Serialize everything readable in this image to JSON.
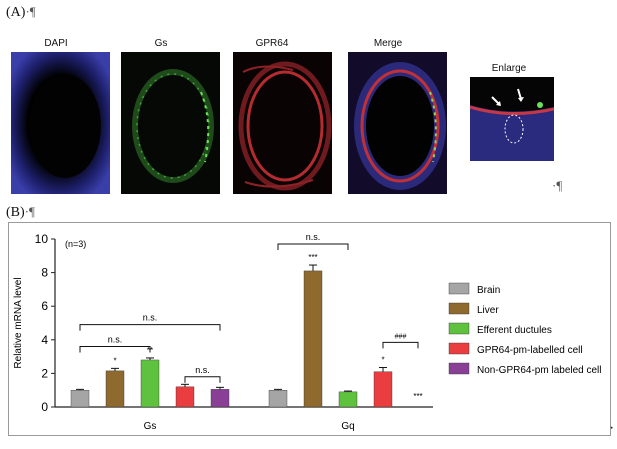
{
  "panel_a": {
    "tag": "(A)",
    "para_mark": "·¶",
    "images": [
      {
        "label": "DAPI"
      },
      {
        "label": "Gs"
      },
      {
        "label": "GPR64"
      },
      {
        "label": "Merge"
      },
      {
        "label": "Enlarge"
      }
    ],
    "trailing_mark": "·¶"
  },
  "panel_b": {
    "tag": "(B)",
    "para_mark": "·¶"
  },
  "colors": {
    "Brain": "#a6a5a6",
    "Liver": "#8e6a2e",
    "Efferent ductules": "#5fc23e",
    "GPR64-pm-labelled cell": "#ea3d3f",
    "Non-GPR64-pm labeled cell": "#8a3f97"
  },
  "chart_data": {
    "type": "bar",
    "ylabel": "Relative mRNA level",
    "ylim": [
      0,
      10
    ],
    "yticks": [
      0,
      2,
      4,
      6,
      8,
      10
    ],
    "annotation_n": "(n=3)",
    "categories": [
      "Gs",
      "Gq"
    ],
    "series": [
      {
        "name": "Brain",
        "values": [
          1.0,
          1.0
        ],
        "errors": [
          0.05,
          0.05
        ],
        "stars": [
          "",
          ""
        ]
      },
      {
        "name": "Liver",
        "values": [
          2.15,
          8.1
        ],
        "errors": [
          0.15,
          0.35
        ],
        "stars": [
          "*",
          "***"
        ]
      },
      {
        "name": "Efferent ductules",
        "values": [
          2.8,
          0.9
        ],
        "errors": [
          0.12,
          0.05
        ],
        "stars": [
          "**",
          ""
        ]
      },
      {
        "name": "GPR64-pm-labelled cell",
        "values": [
          1.2,
          2.1
        ],
        "errors": [
          0.15,
          0.25
        ],
        "stars": [
          "",
          "*"
        ]
      },
      {
        "name": "Non-GPR64-pm labeled cell",
        "values": [
          1.05,
          0.0
        ],
        "errors": [
          0.12,
          0.0
        ],
        "stars": [
          "",
          "***"
        ]
      }
    ],
    "comparisons": [
      {
        "label": "n.s.",
        "group": 0,
        "from": 0,
        "to": 4,
        "y": 4.9
      },
      {
        "label": "n.s.",
        "group": 0,
        "from": 0,
        "to": 2,
        "y": 3.6
      },
      {
        "label": "n.s.",
        "group": 0,
        "from": 3,
        "to": 4,
        "y": 1.8
      },
      {
        "label": "n.s.",
        "group": 1,
        "from": 0,
        "to": 2,
        "y": 9.7
      },
      {
        "label": "###",
        "group": 1,
        "from": 3,
        "to": 4,
        "y": 3.85
      }
    ],
    "legend_position": "right"
  },
  "trailing_mark": "·"
}
